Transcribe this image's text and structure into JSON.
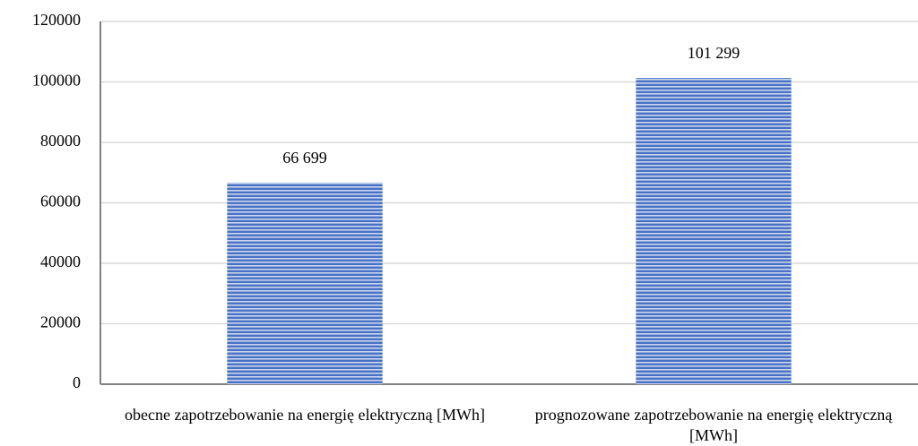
{
  "chart_data": {
    "type": "bar",
    "categories": [
      "obecne zapotrzebowanie na energię elektryczną [MWh]",
      "prognozowane zapotrzebowanie na energię elektryczną [MWh]"
    ],
    "values": [
      66699,
      101299
    ],
    "value_labels": [
      "66 699",
      "101 299"
    ],
    "color": "#4a72c4",
    "ylim": [
      0,
      120000
    ],
    "yticks": [
      0,
      20000,
      40000,
      60000,
      80000,
      100000,
      120000
    ],
    "grid": true
  }
}
